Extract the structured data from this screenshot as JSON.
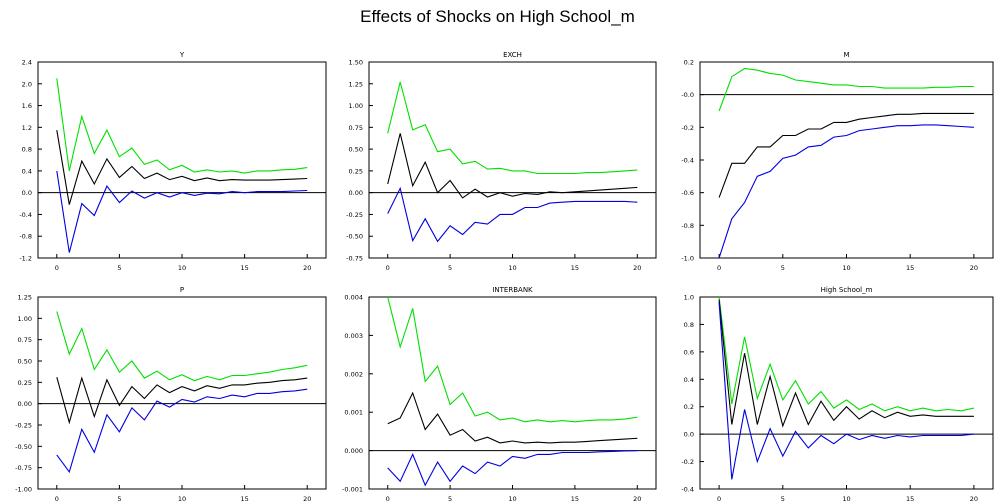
{
  "title": "Effects of Shocks on High School_m",
  "colors": {
    "upper": "#00e000",
    "mid": "#000000",
    "lower": "#0000e0",
    "frame": "#000000"
  },
  "chart_data": [
    {
      "type": "line",
      "title": "Y",
      "x": [
        0,
        1,
        2,
        3,
        4,
        5,
        6,
        7,
        8,
        9,
        10,
        11,
        12,
        13,
        14,
        15,
        16,
        17,
        18,
        19,
        20
      ],
      "xticks": [
        0,
        5,
        10,
        15,
        20
      ],
      "xlim": [
        -1.5,
        21.5
      ],
      "yticks": [
        2.4,
        2.0,
        1.6,
        1.2,
        0.8,
        0.4,
        0.0,
        -0.4,
        -0.8,
        -1.2
      ],
      "ytick_labels": [
        "2.4",
        "2.0",
        "1.6",
        "1.2",
        "0.8",
        "0.4",
        "0.0",
        "-0.4",
        "-0.8",
        "-1.2"
      ],
      "ylim": [
        -1.2,
        2.4
      ],
      "series": [
        {
          "values": [
            2.1,
            0.4,
            1.4,
            0.72,
            1.15,
            0.66,
            0.82,
            0.52,
            0.6,
            0.42,
            0.5,
            0.38,
            0.42,
            0.38,
            0.4,
            0.36,
            0.4,
            0.4,
            0.42,
            0.43,
            0.46
          ]
        },
        {
          "values": [
            1.15,
            -0.22,
            0.58,
            0.16,
            0.62,
            0.28,
            0.48,
            0.26,
            0.36,
            0.24,
            0.3,
            0.22,
            0.27,
            0.22,
            0.24,
            0.23,
            0.23,
            0.23,
            0.24,
            0.25,
            0.26
          ]
        },
        {
          "values": [
            0.4,
            -1.1,
            -0.2,
            -0.42,
            0.12,
            -0.18,
            0.03,
            -0.1,
            0.0,
            -0.08,
            0.0,
            -0.05,
            -0.01,
            -0.02,
            0.02,
            0.0,
            0.02,
            0.02,
            0.02,
            0.03,
            0.04
          ]
        }
      ]
    },
    {
      "type": "line",
      "title": "EXCH",
      "x": [
        0,
        1,
        2,
        3,
        4,
        5,
        6,
        7,
        8,
        9,
        10,
        11,
        12,
        13,
        14,
        15,
        16,
        17,
        18,
        19,
        20
      ],
      "xticks": [
        0,
        5,
        10,
        15,
        20
      ],
      "xlim": [
        -1.5,
        21.5
      ],
      "yticks": [
        1.5,
        1.25,
        1.0,
        0.75,
        0.5,
        0.25,
        0.0,
        -0.25,
        -0.5,
        -0.75
      ],
      "ytick_labels": [
        "1.50",
        "1.25",
        "1.00",
        "0.75",
        "0.50",
        "0.25",
        "0.00",
        "-0.25",
        "-0.50",
        "-0.75"
      ],
      "ylim": [
        -0.75,
        1.5
      ],
      "series": [
        {
          "values": [
            0.68,
            1.27,
            0.72,
            0.78,
            0.47,
            0.5,
            0.33,
            0.36,
            0.27,
            0.28,
            0.25,
            0.25,
            0.22,
            0.22,
            0.22,
            0.22,
            0.23,
            0.23,
            0.24,
            0.25,
            0.26
          ]
        },
        {
          "values": [
            0.1,
            0.68,
            0.08,
            0.35,
            0.0,
            0.14,
            -0.06,
            0.04,
            -0.05,
            0.0,
            -0.04,
            -0.01,
            -0.02,
            0.01,
            0.0,
            0.01,
            0.02,
            0.03,
            0.04,
            0.05,
            0.06
          ]
        },
        {
          "values": [
            -0.24,
            0.05,
            -0.55,
            -0.3,
            -0.56,
            -0.38,
            -0.48,
            -0.34,
            -0.36,
            -0.25,
            -0.25,
            -0.17,
            -0.17,
            -0.12,
            -0.11,
            -0.1,
            -0.1,
            -0.1,
            -0.1,
            -0.1,
            -0.11
          ]
        }
      ]
    },
    {
      "type": "line",
      "title": "M",
      "x": [
        0,
        1,
        2,
        3,
        4,
        5,
        6,
        7,
        8,
        9,
        10,
        11,
        12,
        13,
        14,
        15,
        16,
        17,
        18,
        19,
        20
      ],
      "xticks": [
        0,
        5,
        10,
        15,
        20
      ],
      "xlim": [
        -1.5,
        21.5
      ],
      "yticks": [
        0.2,
        0.0,
        -0.2,
        -0.4,
        -0.6,
        -0.8,
        -1.0
      ],
      "ytick_labels": [
        "0.2",
        "-0.0",
        "-0.2",
        "-0.4",
        "-0.6",
        "-0.8",
        "-1.0"
      ],
      "ylim": [
        -1.0,
        0.2
      ],
      "series": [
        {
          "values": [
            -0.1,
            0.11,
            0.16,
            0.15,
            0.13,
            0.12,
            0.09,
            0.08,
            0.07,
            0.06,
            0.06,
            0.05,
            0.05,
            0.04,
            0.04,
            0.04,
            0.04,
            0.045,
            0.045,
            0.05,
            0.05
          ]
        },
        {
          "values": [
            -0.63,
            -0.42,
            -0.42,
            -0.32,
            -0.32,
            -0.25,
            -0.25,
            -0.21,
            -0.21,
            -0.17,
            -0.17,
            -0.15,
            -0.14,
            -0.13,
            -0.12,
            -0.12,
            -0.115,
            -0.115,
            -0.115,
            -0.115,
            -0.115
          ]
        },
        {
          "values": [
            -1.0,
            -0.76,
            -0.66,
            -0.5,
            -0.47,
            -0.39,
            -0.37,
            -0.32,
            -0.31,
            -0.26,
            -0.25,
            -0.22,
            -0.21,
            -0.2,
            -0.19,
            -0.19,
            -0.185,
            -0.185,
            -0.19,
            -0.195,
            -0.2
          ]
        }
      ]
    },
    {
      "type": "line",
      "title": "P",
      "x": [
        0,
        1,
        2,
        3,
        4,
        5,
        6,
        7,
        8,
        9,
        10,
        11,
        12,
        13,
        14,
        15,
        16,
        17,
        18,
        19,
        20
      ],
      "xticks": [
        0,
        5,
        10,
        15,
        20
      ],
      "xlim": [
        -1.5,
        21.5
      ],
      "yticks": [
        1.25,
        1.0,
        0.75,
        0.5,
        0.25,
        0.0,
        -0.25,
        -0.5,
        -0.75,
        -1.0
      ],
      "ytick_labels": [
        "1.25",
        "1.00",
        "0.75",
        "0.50",
        "0.25",
        "0.00",
        "-0.25",
        "-0.50",
        "-0.75",
        "-1.00"
      ],
      "ylim": [
        -1.0,
        1.25
      ],
      "series": [
        {
          "values": [
            1.08,
            0.58,
            0.88,
            0.4,
            0.63,
            0.37,
            0.5,
            0.3,
            0.38,
            0.28,
            0.34,
            0.27,
            0.32,
            0.28,
            0.33,
            0.33,
            0.35,
            0.37,
            0.4,
            0.42,
            0.45
          ]
        },
        {
          "values": [
            0.31,
            -0.22,
            0.3,
            -0.15,
            0.28,
            -0.02,
            0.2,
            0.06,
            0.22,
            0.13,
            0.2,
            0.15,
            0.21,
            0.18,
            0.22,
            0.22,
            0.24,
            0.25,
            0.27,
            0.28,
            0.3
          ]
        },
        {
          "values": [
            -0.6,
            -0.8,
            -0.3,
            -0.57,
            -0.13,
            -0.33,
            -0.05,
            -0.19,
            0.03,
            -0.04,
            0.05,
            0.02,
            0.08,
            0.06,
            0.1,
            0.08,
            0.12,
            0.12,
            0.14,
            0.15,
            0.17
          ]
        }
      ]
    },
    {
      "type": "line",
      "title": "INTERBANK",
      "x": [
        0,
        1,
        2,
        3,
        4,
        5,
        6,
        7,
        8,
        9,
        10,
        11,
        12,
        13,
        14,
        15,
        16,
        17,
        18,
        19,
        20
      ],
      "xticks": [
        0,
        5,
        10,
        15,
        20
      ],
      "xlim": [
        -1.5,
        21.5
      ],
      "yticks": [
        0.004,
        0.003,
        0.002,
        0.001,
        0.0,
        -0.001
      ],
      "ytick_labels": [
        "0.004",
        "0.003",
        "0.002",
        "0.001",
        "0.000",
        "-0.001"
      ],
      "ylim": [
        -0.001,
        0.004
      ],
      "series": [
        {
          "values": [
            0.004,
            0.0027,
            0.0037,
            0.0018,
            0.0022,
            0.0012,
            0.0015,
            0.0009,
            0.001,
            0.0008,
            0.00085,
            0.00075,
            0.0008,
            0.00075,
            0.00078,
            0.00075,
            0.00078,
            0.0008,
            0.0008,
            0.00082,
            0.00087
          ]
        },
        {
          "values": [
            0.0007,
            0.00085,
            0.0015,
            0.00055,
            0.00095,
            0.0004,
            0.00055,
            0.00025,
            0.00035,
            0.0002,
            0.00025,
            0.0002,
            0.00022,
            0.0002,
            0.00022,
            0.00022,
            0.00024,
            0.00026,
            0.00028,
            0.0003,
            0.00032
          ]
        },
        {
          "values": [
            -0.00045,
            -0.0008,
            -0.0001,
            -0.0009,
            -0.0003,
            -0.0008,
            -0.0004,
            -0.0006,
            -0.0003,
            -0.0004,
            -0.00015,
            -0.0002,
            -0.0001,
            -0.0001,
            -5e-05,
            -5e-05,
            -5e-05,
            -3e-05,
            -2e-05,
            -1e-05,
            0.0
          ]
        }
      ]
    },
    {
      "type": "line",
      "title": "High School_m",
      "x": [
        0,
        1,
        2,
        3,
        4,
        5,
        6,
        7,
        8,
        9,
        10,
        11,
        12,
        13,
        14,
        15,
        16,
        17,
        18,
        19,
        20
      ],
      "xticks": [
        0,
        5,
        10,
        15,
        20
      ],
      "xlim": [
        -1.5,
        21.5
      ],
      "yticks": [
        1.0,
        0.8,
        0.6,
        0.4,
        0.2,
        0.0,
        -0.2,
        -0.4
      ],
      "ytick_labels": [
        "1.0",
        "0.8",
        "0.6",
        "0.4",
        "0.2",
        "0.0",
        "-0.2",
        "-0.4"
      ],
      "ylim": [
        -0.4,
        1.0
      ],
      "series": [
        {
          "values": [
            1.0,
            0.22,
            0.71,
            0.26,
            0.51,
            0.25,
            0.39,
            0.22,
            0.31,
            0.19,
            0.25,
            0.18,
            0.22,
            0.17,
            0.2,
            0.17,
            0.19,
            0.17,
            0.18,
            0.17,
            0.19
          ]
        },
        {
          "values": [
            0.98,
            0.07,
            0.59,
            0.07,
            0.42,
            0.06,
            0.3,
            0.07,
            0.24,
            0.1,
            0.2,
            0.11,
            0.17,
            0.12,
            0.16,
            0.13,
            0.14,
            0.13,
            0.13,
            0.13,
            0.13
          ]
        },
        {
          "values": [
            0.96,
            -0.33,
            0.18,
            -0.2,
            0.04,
            -0.16,
            0.02,
            -0.1,
            -0.01,
            -0.07,
            0.0,
            -0.04,
            -0.01,
            -0.03,
            -0.01,
            -0.02,
            -0.01,
            -0.01,
            -0.01,
            -0.01,
            0.0
          ]
        }
      ]
    }
  ]
}
